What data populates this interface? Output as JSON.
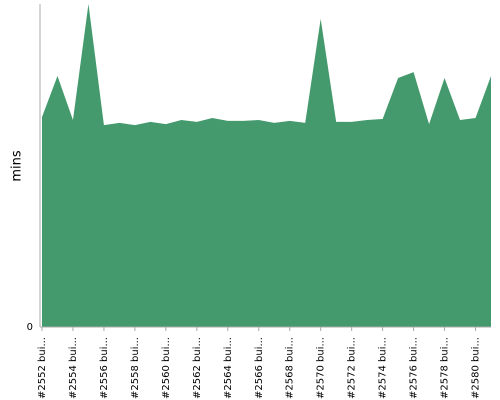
{
  "chart_data": {
    "type": "area",
    "y_label": "mins",
    "categories": [
      "#2552 bui...",
      null,
      "#2554 bui...",
      null,
      "#2556 bui...",
      null,
      "#2558 bui...",
      null,
      "#2560 bui...",
      null,
      "#2562 bui...",
      null,
      "#2564 bui...",
      null,
      "#2566 bui...",
      null,
      "#2568 bui...",
      null,
      "#2570 bui...",
      null,
      "#2572 bui...",
      null,
      "#2574 bui...",
      null,
      "#2576 bui...",
      null,
      "#2578 bui...",
      null,
      "#2580 bui...",
      null
    ],
    "values": [
      6.5,
      7.77,
      6.41,
      10,
      6.25,
      6.32,
      6.25,
      6.35,
      6.28,
      6.41,
      6.35,
      6.47,
      6.38,
      6.38,
      6.41,
      6.32,
      6.38,
      6.32,
      9.54,
      6.35,
      6.35,
      6.41,
      6.44,
      7.71,
      7.89,
      6.28,
      7.71,
      6.41,
      6.47,
      7.77
    ],
    "color": "#449a6d",
    "ylim": [
      0,
      10
    ],
    "yticks": [
      0
    ]
  }
}
